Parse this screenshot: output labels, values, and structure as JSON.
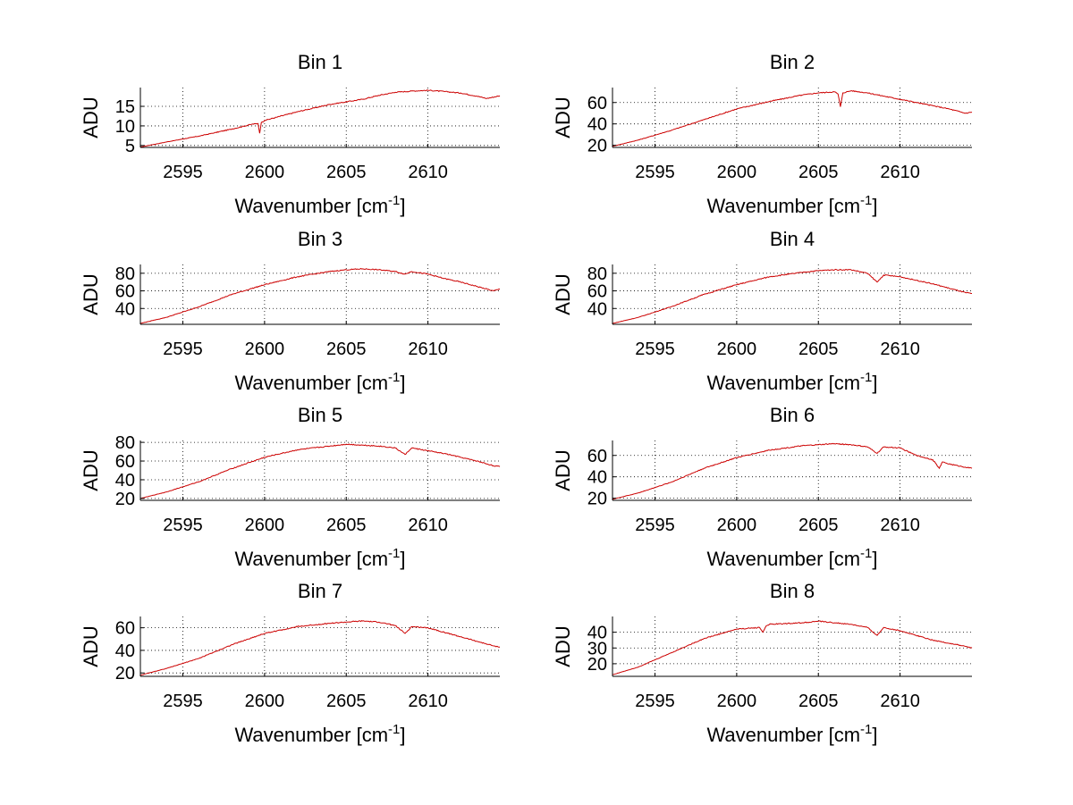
{
  "chart_data": [
    {
      "type": "line",
      "title": "Bin 1",
      "xlabel": "Wavenumber [cm",
      "xlabel_sup": "-1",
      "xlabel_end": "]",
      "ylabel": "ADU",
      "xlim": [
        2592.4,
        2614.4
      ],
      "ylim": [
        4.5,
        19.8
      ],
      "xticks": [
        2595,
        2600,
        2605,
        2610
      ],
      "yticks": [
        5,
        10,
        15
      ],
      "series": [
        {
          "color": "#cc0000",
          "x": [
            2592.4,
            2594,
            2596,
            2598,
            2599.2,
            2599.6,
            2599.7,
            2599.8,
            2600,
            2602,
            2604,
            2606,
            2607,
            2608,
            2609,
            2610,
            2611,
            2612,
            2613,
            2613.6,
            2614.4
          ],
          "y": [
            4.6,
            5.9,
            7.4,
            9.2,
            10.4,
            10.6,
            8.1,
            10.8,
            11.4,
            13.6,
            15.5,
            16.8,
            17.8,
            18.6,
            18.9,
            19.1,
            18.8,
            18.4,
            17.6,
            17.0,
            17.7
          ]
        }
      ]
    },
    {
      "type": "line",
      "title": "Bin 2",
      "xlabel": "Wavenumber [cm",
      "xlabel_sup": "-1",
      "xlabel_end": "]",
      "ylabel": "ADU",
      "xlim": [
        2592.4,
        2614.4
      ],
      "ylim": [
        18,
        74
      ],
      "xticks": [
        2595,
        2600,
        2605,
        2610
      ],
      "yticks": [
        20,
        40,
        60
      ],
      "series": [
        {
          "color": "#cc0000",
          "x": [
            2592.4,
            2594,
            2596,
            2598,
            2600,
            2602,
            2604,
            2605,
            2606,
            2606.2,
            2606.35,
            2606.5,
            2607,
            2608,
            2609,
            2610,
            2611,
            2612,
            2613,
            2614,
            2614.4
          ],
          "y": [
            19,
            25,
            34,
            44,
            54,
            61,
            67,
            69,
            70,
            68,
            56,
            69,
            71,
            69,
            66,
            63,
            60,
            57,
            54,
            50,
            51
          ]
        }
      ]
    },
    {
      "type": "line",
      "title": "Bin 3",
      "xlabel": "Wavenumber [cm",
      "xlabel_sup": "-1",
      "xlabel_end": "]",
      "ylabel": "ADU",
      "xlim": [
        2592.4,
        2614.4
      ],
      "ylim": [
        22,
        90
      ],
      "xticks": [
        2595,
        2600,
        2605,
        2610
      ],
      "yticks": [
        40,
        60,
        80
      ],
      "series": [
        {
          "color": "#cc0000",
          "x": [
            2592.4,
            2594,
            2596,
            2598,
            2600,
            2602,
            2604,
            2605,
            2606,
            2607,
            2608,
            2608.6,
            2609,
            2610,
            2611,
            2612,
            2613,
            2614,
            2614.4
          ],
          "y": [
            23,
            30,
            42,
            56,
            67,
            76,
            82,
            84,
            85,
            84,
            82,
            79,
            82,
            79,
            74,
            70,
            65,
            60,
            62
          ]
        }
      ]
    },
    {
      "type": "line",
      "title": "Bin 4",
      "xlabel": "Wavenumber [cm",
      "xlabel_sup": "-1",
      "xlabel_end": "]",
      "ylabel": "ADU",
      "xlim": [
        2592.4,
        2614.4
      ],
      "ylim": [
        22,
        90
      ],
      "xticks": [
        2595,
        2600,
        2605,
        2610
      ],
      "yticks": [
        40,
        60,
        80
      ],
      "series": [
        {
          "color": "#cc0000",
          "x": [
            2592.4,
            2594,
            2596,
            2598,
            2600,
            2602,
            2604,
            2605,
            2606,
            2607,
            2608,
            2608.6,
            2609,
            2610,
            2611,
            2612,
            2613,
            2614,
            2614.4
          ],
          "y": [
            23,
            30,
            42,
            56,
            67,
            76,
            81,
            83,
            84,
            84,
            80,
            70,
            78,
            76,
            72,
            68,
            63,
            58,
            57
          ]
        }
      ]
    },
    {
      "type": "line",
      "title": "Bin 5",
      "xlabel": "Wavenumber [cm",
      "xlabel_sup": "-1",
      "xlabel_end": "]",
      "ylabel": "ADU",
      "xlim": [
        2592.4,
        2614.4
      ],
      "ylim": [
        18,
        82
      ],
      "xticks": [
        2595,
        2600,
        2605,
        2610
      ],
      "yticks": [
        20,
        40,
        60,
        80
      ],
      "series": [
        {
          "color": "#cc0000",
          "x": [
            2592.4,
            2594,
            2596,
            2598,
            2600,
            2602,
            2604,
            2605,
            2606,
            2607,
            2608,
            2608.6,
            2609,
            2610,
            2611,
            2612,
            2613,
            2614,
            2614.4
          ],
          "y": [
            20,
            27,
            38,
            52,
            64,
            72,
            76,
            78,
            77,
            76,
            74,
            67,
            74,
            71,
            68,
            64,
            60,
            55,
            54
          ]
        }
      ]
    },
    {
      "type": "line",
      "title": "Bin 6",
      "xlabel": "Wavenumber [cm",
      "xlabel_sup": "-1",
      "xlabel_end": "]",
      "ylabel": "ADU",
      "xlim": [
        2592.4,
        2614.4
      ],
      "ylim": [
        18,
        74
      ],
      "xticks": [
        2595,
        2600,
        2605,
        2610
      ],
      "yticks": [
        20,
        40,
        60
      ],
      "series": [
        {
          "color": "#cc0000",
          "x": [
            2592.4,
            2594,
            2596,
            2598,
            2600,
            2602,
            2604,
            2605,
            2606,
            2607,
            2608,
            2608.6,
            2609,
            2610,
            2611,
            2612,
            2612.4,
            2612.6,
            2613,
            2614,
            2614.4
          ],
          "y": [
            19,
            25,
            35,
            48,
            58,
            65,
            69,
            70,
            71,
            70,
            68,
            62,
            68,
            67,
            60,
            56,
            48,
            54,
            52,
            49,
            48
          ]
        }
      ]
    },
    {
      "type": "line",
      "title": "Bin 7",
      "xlabel": "Wavenumber [cm",
      "xlabel_sup": "-1",
      "xlabel_end": "]",
      "ylabel": "ADU",
      "xlim": [
        2592.4,
        2614.4
      ],
      "ylim": [
        17,
        70
      ],
      "xticks": [
        2595,
        2600,
        2605,
        2610
      ],
      "yticks": [
        20,
        40,
        60
      ],
      "series": [
        {
          "color": "#cc0000",
          "x": [
            2592.4,
            2594,
            2596,
            2598,
            2600,
            2602,
            2604,
            2605,
            2606,
            2607,
            2608,
            2608.6,
            2609,
            2610,
            2611,
            2612,
            2613,
            2614,
            2614.4
          ],
          "y": [
            18,
            24,
            33,
            45,
            55,
            61,
            64,
            65,
            66,
            65,
            62,
            55,
            61,
            60,
            56,
            52,
            48,
            44,
            43
          ]
        }
      ]
    },
    {
      "type": "line",
      "title": "Bin 8",
      "xlabel": "Wavenumber [cm",
      "xlabel_sup": "-1",
      "xlabel_end": "]",
      "ylabel": "ADU",
      "xlim": [
        2592.4,
        2614.4
      ],
      "ylim": [
        12,
        50
      ],
      "xticks": [
        2595,
        2600,
        2605,
        2610
      ],
      "yticks": [
        20,
        30,
        40
      ],
      "series": [
        {
          "color": "#cc0000",
          "x": [
            2592.4,
            2594,
            2596,
            2598,
            2600,
            2601.4,
            2601.6,
            2601.8,
            2602,
            2604,
            2605,
            2606,
            2607,
            2608,
            2608.6,
            2609,
            2610,
            2611,
            2612,
            2613,
            2614,
            2614.4
          ],
          "y": [
            13,
            18,
            27,
            36,
            42,
            43,
            40,
            44,
            45,
            46,
            47,
            46,
            45,
            43,
            38,
            43,
            41,
            38,
            35,
            33,
            31,
            30
          ]
        }
      ]
    }
  ]
}
